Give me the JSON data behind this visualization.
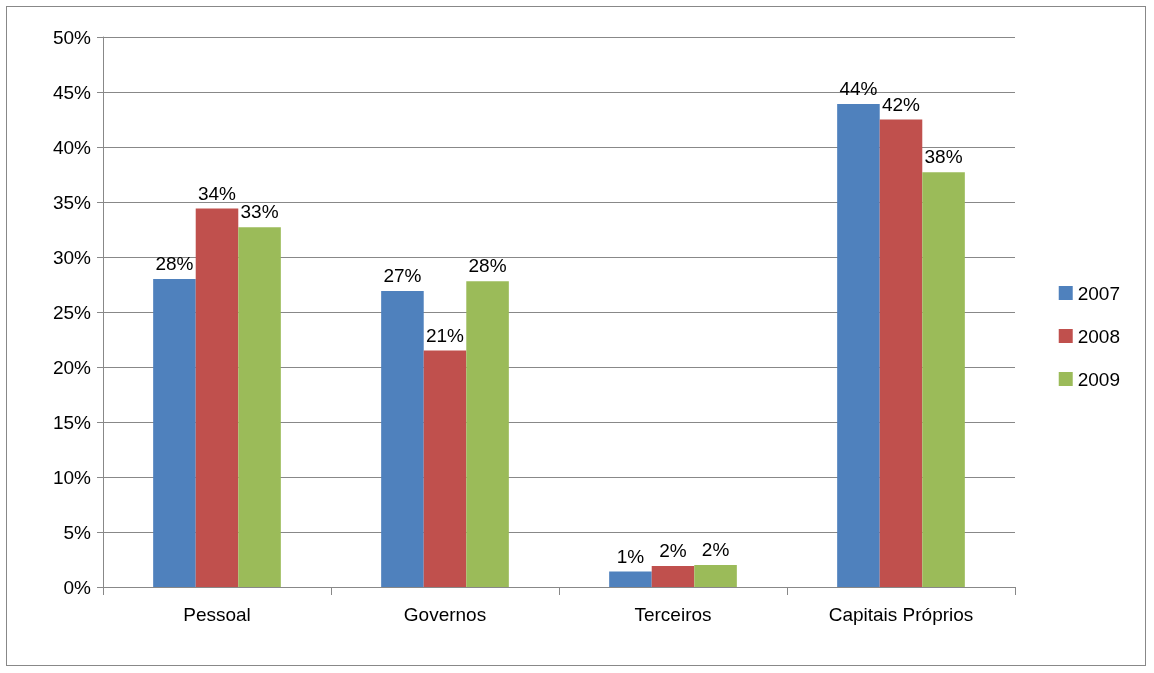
{
  "chart_data": {
    "type": "bar",
    "categories": [
      "Pessoal",
      "Governos",
      "Terceiros",
      "Capitais Próprios"
    ],
    "series": [
      {
        "name": "2007",
        "color": "#4f81bd",
        "values": [
          28.0,
          26.9,
          1.4,
          43.9
        ],
        "value_labels": [
          "28%",
          "27%",
          "1%",
          "44%"
        ]
      },
      {
        "name": "2008",
        "color": "#c0504d",
        "values": [
          34.4,
          21.5,
          1.9,
          42.5
        ],
        "value_labels": [
          "34%",
          "21%",
          "2%",
          "42%"
        ]
      },
      {
        "name": "2009",
        "color": "#9bbb59",
        "values": [
          32.7,
          27.8,
          2.0,
          37.7
        ],
        "value_labels": [
          "33%",
          "28%",
          "2%",
          "38%"
        ]
      }
    ],
    "ylim": [
      0,
      50
    ],
    "yticks": [
      {
        "value": 0,
        "label": "0%"
      },
      {
        "value": 5,
        "label": "5%"
      },
      {
        "value": 10,
        "label": "10%"
      },
      {
        "value": 15,
        "label": "15%"
      },
      {
        "value": 20,
        "label": "20%"
      },
      {
        "value": 25,
        "label": "25%"
      },
      {
        "value": 30,
        "label": "30%"
      },
      {
        "value": 35,
        "label": "35%"
      },
      {
        "value": 40,
        "label": "40%"
      },
      {
        "value": 45,
        "label": "45%"
      },
      {
        "value": 50,
        "label": "50%"
      }
    ],
    "grid": "y",
    "legend": "right"
  }
}
